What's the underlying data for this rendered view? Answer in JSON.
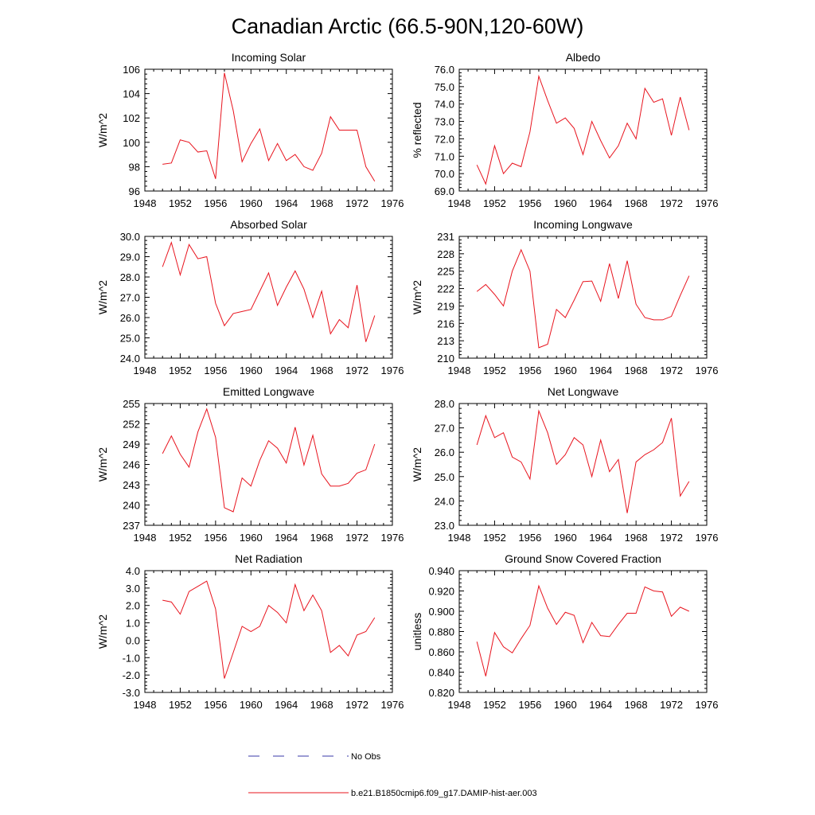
{
  "title": "Canadian Arctic (66.5-90N,120-60W)",
  "legend": [
    {
      "label": "No Obs",
      "color": "#3a3aa8",
      "style": "dashed"
    },
    {
      "label": "b.e21.B1850cmip6.f09_g17.DAMIP-hist-aer.003",
      "color": "#e8141e",
      "style": "solid"
    }
  ],
  "chart_data": [
    {
      "type": "line",
      "title": "Incoming Solar",
      "ylabel": "W/m^2",
      "xlim": [
        1948,
        1976
      ],
      "xticks": [
        1948,
        1952,
        1956,
        1960,
        1964,
        1968,
        1972,
        1976
      ],
      "ylim": [
        96,
        106
      ],
      "yticks": [
        "96",
        "98",
        "100",
        "102",
        "104",
        "106"
      ],
      "x": [
        1950,
        1951,
        1952,
        1953,
        1954,
        1955,
        1956,
        1957,
        1958,
        1959,
        1960,
        1961,
        1962,
        1963,
        1964,
        1965,
        1966,
        1967,
        1968,
        1969,
        1970,
        1971,
        1972,
        1973,
        1974
      ],
      "series": [
        {
          "color": "#e8141e",
          "values": [
            98.2,
            98.3,
            100.2,
            100.0,
            99.2,
            99.3,
            97.0,
            105.7,
            102.6,
            98.4,
            99.9,
            101.1,
            98.5,
            99.9,
            98.5,
            99.0,
            98.0,
            97.7,
            99.1,
            102.1,
            101.0,
            101.0,
            101.0,
            98.0,
            96.8
          ]
        }
      ]
    },
    {
      "type": "line",
      "title": "Albedo",
      "ylabel": "% reflected",
      "xlim": [
        1948,
        1976
      ],
      "xticks": [
        1948,
        1952,
        1956,
        1960,
        1964,
        1968,
        1972,
        1976
      ],
      "ylim": [
        69,
        76
      ],
      "yticks": [
        "69.0",
        "70.0",
        "71.0",
        "72.0",
        "73.0",
        "74.0",
        "75.0",
        "76.0"
      ],
      "x": [
        1950,
        1951,
        1952,
        1953,
        1954,
        1955,
        1956,
        1957,
        1958,
        1959,
        1960,
        1961,
        1962,
        1963,
        1964,
        1965,
        1966,
        1967,
        1968,
        1969,
        1970,
        1971,
        1972,
        1973,
        1974
      ],
      "series": [
        {
          "color": "#e8141e",
          "values": [
            70.5,
            69.4,
            71.6,
            70.0,
            70.6,
            70.4,
            72.4,
            75.6,
            74.2,
            72.9,
            73.2,
            72.6,
            71.1,
            73.0,
            71.9,
            70.9,
            71.6,
            72.9,
            72.0,
            74.9,
            74.1,
            74.3,
            72.2,
            74.4,
            72.5
          ]
        }
      ]
    },
    {
      "type": "line",
      "title": "Absorbed Solar",
      "ylabel": "W/m^2",
      "xlim": [
        1948,
        1976
      ],
      "xticks": [
        1948,
        1952,
        1956,
        1960,
        1964,
        1968,
        1972,
        1976
      ],
      "ylim": [
        24,
        30
      ],
      "yticks": [
        "24.0",
        "25.0",
        "26.0",
        "27.0",
        "28.0",
        "29.0",
        "30.0"
      ],
      "x": [
        1950,
        1951,
        1952,
        1953,
        1954,
        1955,
        1956,
        1957,
        1958,
        1959,
        1960,
        1961,
        1962,
        1963,
        1964,
        1965,
        1966,
        1967,
        1968,
        1969,
        1970,
        1971,
        1972,
        1973,
        1974
      ],
      "series": [
        {
          "color": "#e8141e",
          "values": [
            28.5,
            29.7,
            28.1,
            29.6,
            28.9,
            29.0,
            26.7,
            25.6,
            26.2,
            26.3,
            26.4,
            27.3,
            28.2,
            26.6,
            27.5,
            28.3,
            27.4,
            26.0,
            27.3,
            25.2,
            25.9,
            25.5,
            27.6,
            24.8,
            26.1
          ]
        }
      ]
    },
    {
      "type": "line",
      "title": "Incoming Longwave",
      "ylabel": "W/m^2",
      "xlim": [
        1948,
        1976
      ],
      "xticks": [
        1948,
        1952,
        1956,
        1960,
        1964,
        1968,
        1972,
        1976
      ],
      "ylim": [
        210,
        231
      ],
      "yticks": [
        "210",
        "213",
        "216",
        "219",
        "222",
        "225",
        "228",
        "231"
      ],
      "x": [
        1950,
        1951,
        1952,
        1953,
        1954,
        1955,
        1956,
        1957,
        1958,
        1959,
        1960,
        1961,
        1962,
        1963,
        1964,
        1965,
        1966,
        1967,
        1968,
        1969,
        1970,
        1971,
        1972,
        1973,
        1974
      ],
      "series": [
        {
          "color": "#e8141e",
          "values": [
            221.5,
            222.7,
            221.0,
            219.0,
            225.0,
            228.7,
            225.0,
            211.8,
            212.4,
            218.4,
            217.0,
            220.0,
            223.2,
            223.3,
            219.8,
            226.3,
            220.3,
            226.8,
            219.3,
            217.0,
            216.6,
            216.6,
            217.2,
            220.8,
            224.2
          ]
        }
      ]
    },
    {
      "type": "line",
      "title": "Emitted Longwave",
      "ylabel": "W/m^2",
      "xlim": [
        1948,
        1976
      ],
      "xticks": [
        1948,
        1952,
        1956,
        1960,
        1964,
        1968,
        1972,
        1976
      ],
      "ylim": [
        237,
        255
      ],
      "yticks": [
        "237",
        "240",
        "243",
        "246",
        "249",
        "252",
        "255"
      ],
      "x": [
        1950,
        1951,
        1952,
        1953,
        1954,
        1955,
        1956,
        1957,
        1958,
        1959,
        1960,
        1961,
        1962,
        1963,
        1964,
        1965,
        1966,
        1967,
        1968,
        1969,
        1970,
        1971,
        1972,
        1973,
        1974
      ],
      "series": [
        {
          "color": "#e8141e",
          "values": [
            247.6,
            250.2,
            247.5,
            245.6,
            250.8,
            254.2,
            250.0,
            239.6,
            239.0,
            244.0,
            242.8,
            246.6,
            249.5,
            248.4,
            246.2,
            251.5,
            245.9,
            250.3,
            244.6,
            242.8,
            242.8,
            243.2,
            244.7,
            245.2,
            249.0
          ]
        }
      ]
    },
    {
      "type": "line",
      "title": "Net Longwave",
      "ylabel": "W/m^2",
      "xlim": [
        1948,
        1976
      ],
      "xticks": [
        1948,
        1952,
        1956,
        1960,
        1964,
        1968,
        1972,
        1976
      ],
      "ylim": [
        23,
        28
      ],
      "yticks": [
        "23.0",
        "24.0",
        "25.0",
        "26.0",
        "27.0",
        "28.0"
      ],
      "x": [
        1950,
        1951,
        1952,
        1953,
        1954,
        1955,
        1956,
        1957,
        1958,
        1959,
        1960,
        1961,
        1962,
        1963,
        1964,
        1965,
        1966,
        1967,
        1968,
        1969,
        1970,
        1971,
        1972,
        1973,
        1974
      ],
      "series": [
        {
          "color": "#e8141e",
          "values": [
            26.3,
            27.5,
            26.6,
            26.8,
            25.8,
            25.6,
            24.9,
            27.7,
            26.8,
            25.5,
            25.9,
            26.6,
            26.3,
            25.0,
            26.5,
            25.2,
            25.7,
            23.5,
            25.6,
            25.9,
            26.1,
            26.4,
            27.4,
            24.2,
            24.8
          ]
        }
      ]
    },
    {
      "type": "line",
      "title": "Net Radiation",
      "ylabel": "W/m^2",
      "xlim": [
        1948,
        1976
      ],
      "xticks": [
        1948,
        1952,
        1956,
        1960,
        1964,
        1968,
        1972,
        1976
      ],
      "ylim": [
        -3,
        4
      ],
      "yticks": [
        "-3.0",
        "-2.0",
        "-1.0",
        "0.0",
        "1.0",
        "2.0",
        "3.0",
        "4.0"
      ],
      "x": [
        1950,
        1951,
        1952,
        1953,
        1954,
        1955,
        1956,
        1957,
        1958,
        1959,
        1960,
        1961,
        1962,
        1963,
        1964,
        1965,
        1966,
        1967,
        1968,
        1969,
        1970,
        1971,
        1972,
        1973,
        1974
      ],
      "series": [
        {
          "color": "#e8141e",
          "values": [
            2.3,
            2.2,
            1.5,
            2.8,
            3.1,
            3.4,
            1.8,
            -2.2,
            -0.7,
            0.8,
            0.5,
            0.8,
            2.0,
            1.6,
            1.0,
            3.2,
            1.7,
            2.6,
            1.7,
            -0.7,
            -0.3,
            -0.9,
            0.3,
            0.5,
            1.3
          ]
        }
      ]
    },
    {
      "type": "line",
      "title": "Ground Snow Covered Fraction",
      "ylabel": "unitless",
      "xlim": [
        1948,
        1976
      ],
      "xticks": [
        1948,
        1952,
        1956,
        1960,
        1964,
        1968,
        1972,
        1976
      ],
      "ylim": [
        0.82,
        0.94
      ],
      "yticks": [
        "0.820",
        "0.840",
        "0.860",
        "0.880",
        "0.900",
        "0.920",
        "0.940"
      ],
      "x": [
        1950,
        1951,
        1952,
        1953,
        1954,
        1955,
        1956,
        1957,
        1958,
        1959,
        1960,
        1961,
        1962,
        1963,
        1964,
        1965,
        1966,
        1967,
        1968,
        1969,
        1970,
        1971,
        1972,
        1973,
        1974
      ],
      "series": [
        {
          "color": "#e8141e",
          "values": [
            0.87,
            0.836,
            0.879,
            0.865,
            0.859,
            0.873,
            0.886,
            0.925,
            0.903,
            0.887,
            0.899,
            0.896,
            0.869,
            0.889,
            0.876,
            0.875,
            0.887,
            0.898,
            0.898,
            0.924,
            0.92,
            0.919,
            0.895,
            0.904,
            0.9
          ]
        }
      ]
    }
  ]
}
